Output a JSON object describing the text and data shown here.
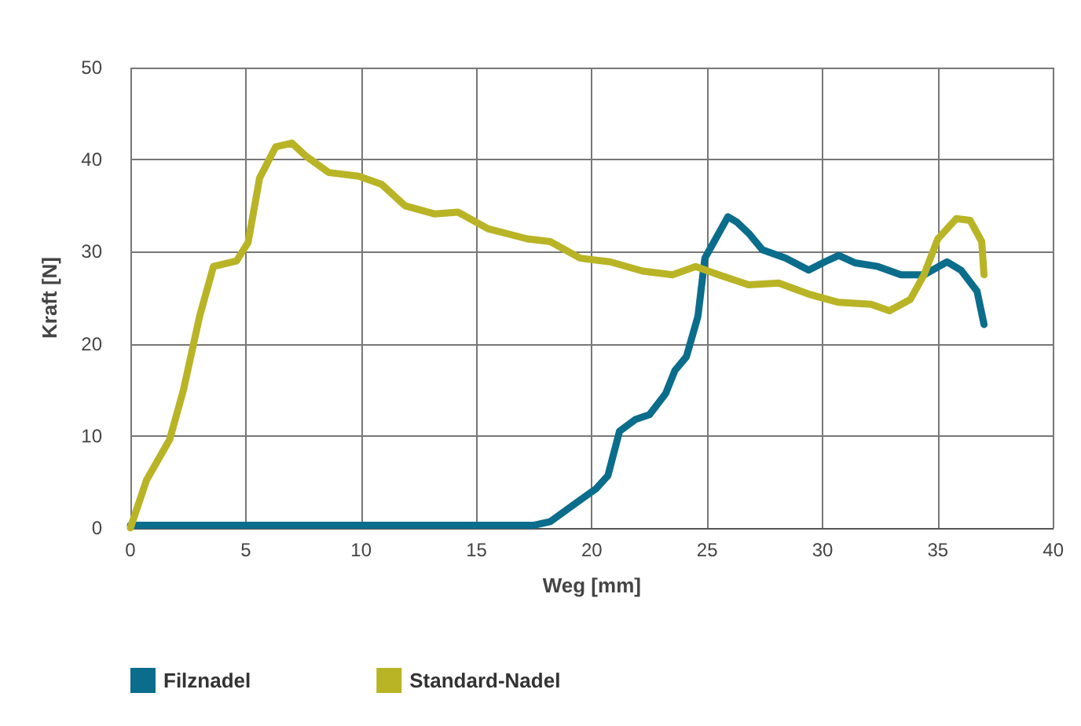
{
  "chart_data": {
    "type": "line",
    "xlabel": "Weg [mm]",
    "ylabel": "Kraft [N]",
    "xlim": [
      0,
      40
    ],
    "xticks": [
      0,
      5,
      10,
      15,
      20,
      25,
      30,
      35,
      40
    ],
    "ylim": [
      0,
      50
    ],
    "yticks": [
      0,
      10,
      20,
      30,
      40,
      50
    ],
    "grid": true,
    "legend": "bottom left",
    "marker": "none",
    "line_style": "solid",
    "series": [
      {
        "name": "Filznadel",
        "color": "#0b6d8c",
        "x": [
          0,
          17.5,
          18.2,
          19.2,
          20.2,
          20.7,
          21.2,
          21.9,
          22.5,
          23.2,
          23.6,
          24.1,
          24.6,
          24.9,
          25.3,
          25.9,
          26.3,
          26.8,
          27.4,
          28.4,
          29.4,
          30.1,
          30.7,
          31.4,
          32.4,
          33.4,
          34.4,
          35.4,
          36,
          36.7,
          37
        ],
        "values": [
          0.3,
          0.3,
          0.7,
          2.5,
          4.3,
          5.7,
          10.5,
          11.8,
          12.3,
          14.6,
          17.1,
          18.6,
          23,
          29.3,
          31.1,
          33.8,
          33.2,
          32,
          30.2,
          29.3,
          28,
          28.9,
          29.6,
          28.8,
          28.4,
          27.5,
          27.5,
          28.9,
          28,
          25.7,
          22.1
        ]
      },
      {
        "name": "Standard-Nadel",
        "color": "#b9b425",
        "x": [
          0,
          0.7,
          1.7,
          2.3,
          3,
          3.6,
          4.6,
          5.1,
          5.6,
          6.3,
          7,
          7.6,
          8.6,
          9.9,
          10.9,
          11.9,
          13.2,
          14.2,
          15.5,
          17.2,
          18.2,
          19.5,
          20.8,
          22.2,
          23.5,
          24.5,
          25.5,
          26.8,
          28.1,
          29.4,
          30.7,
          32.1,
          32.9,
          33.8,
          34.4,
          35,
          35.8,
          36.4,
          36.9,
          37
        ],
        "values": [
          0,
          5.2,
          9.6,
          15,
          23,
          28.4,
          29,
          31,
          38,
          41.4,
          41.8,
          40.4,
          38.6,
          38.2,
          37.3,
          35,
          34.1,
          34.3,
          32.5,
          31.4,
          31.1,
          29.3,
          28.9,
          27.9,
          27.5,
          28.4,
          27.5,
          26.4,
          26.6,
          25.4,
          24.5,
          24.3,
          23.6,
          24.8,
          27.5,
          31.4,
          33.6,
          33.4,
          31.1,
          27.5
        ]
      }
    ]
  }
}
